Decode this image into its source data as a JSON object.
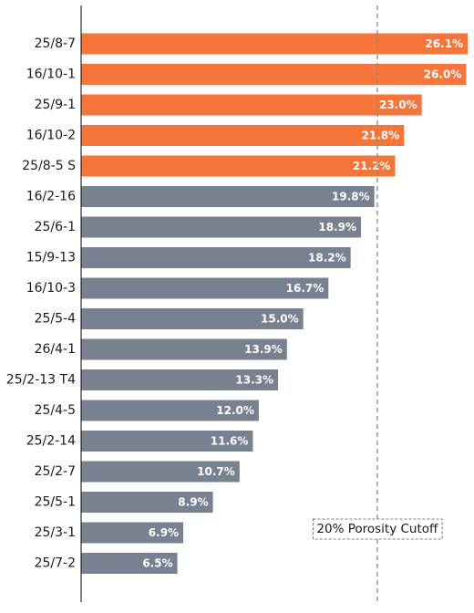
{
  "chart_data": {
    "type": "bar",
    "orientation": "horizontal",
    "categories": [
      "25/8-7",
      "16/10-1",
      "25/9-1",
      "16/10-2",
      "25/8-5 S",
      "16/2-16",
      "25/6-1",
      "15/9-13",
      "16/10-3",
      "25/5-4",
      "26/4-1",
      "25/2-13 T4",
      "25/4-5",
      "25/2-14",
      "25/2-7",
      "25/5-1",
      "25/3-1",
      "25/7-2"
    ],
    "values": [
      26.1,
      26.0,
      23.0,
      21.8,
      21.2,
      19.8,
      18.9,
      18.2,
      16.7,
      15.0,
      13.9,
      13.3,
      12.0,
      11.6,
      10.7,
      8.9,
      6.9,
      6.5
    ],
    "value_labels": [
      "26.1%",
      "26.0%",
      "23.0%",
      "21.8%",
      "21.2%",
      "19.8%",
      "18.9%",
      "18.2%",
      "16.7%",
      "15.0%",
      "13.9%",
      "13.3%",
      "12.0%",
      "11.6%",
      "10.7%",
      "8.9%",
      "6.9%",
      "6.5%"
    ],
    "title": "",
    "xlabel": "",
    "ylabel": "",
    "xlim": [
      0,
      26.1
    ],
    "grid": false,
    "reference_line": {
      "value": 20,
      "style": "dashed",
      "color": "#888888"
    },
    "annotation": "20% Porosity Cutoff",
    "colors": {
      "above_cutoff": "#f5753b",
      "below_cutoff": "#778190"
    }
  }
}
